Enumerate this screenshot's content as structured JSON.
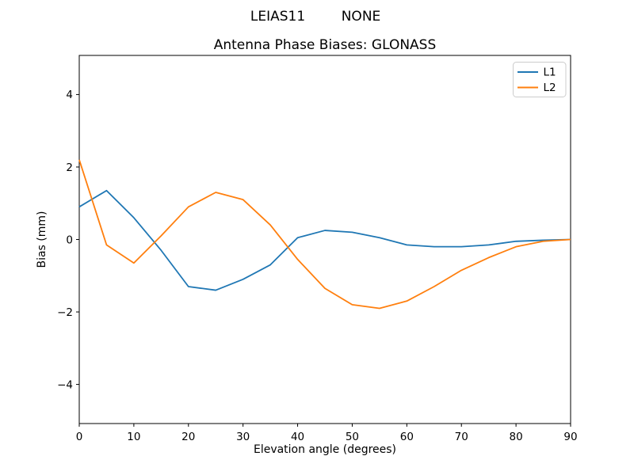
{
  "header": {
    "station": "LEIAS11",
    "radome": "NONE"
  },
  "chart_data": {
    "type": "line",
    "title": "Antenna Phase Biases: GLONASS",
    "xlabel": "Elevation angle (degrees)",
    "ylabel": "Bias (mm)",
    "xlim": [
      0,
      90
    ],
    "ylim": [
      -5.08,
      5.08
    ],
    "grid": false,
    "xticks": [
      0,
      10,
      20,
      30,
      40,
      50,
      60,
      70,
      80,
      90
    ],
    "xtick_labels": [
      "0",
      "10",
      "20",
      "30",
      "40",
      "50",
      "60",
      "70",
      "80",
      "90"
    ],
    "yticks": [
      -4,
      -2,
      0,
      2,
      4
    ],
    "ytick_labels": [
      "−4",
      "−2",
      "0",
      "2",
      "4"
    ],
    "x": [
      0,
      5,
      10,
      15,
      20,
      25,
      30,
      35,
      40,
      45,
      50,
      55,
      60,
      65,
      70,
      75,
      80,
      85,
      90
    ],
    "series": [
      {
        "name": "L1",
        "color": "#1f77b4",
        "values": [
          0.9,
          1.35,
          0.6,
          -0.3,
          -1.3,
          -1.4,
          -1.1,
          -0.7,
          0.05,
          0.25,
          0.2,
          0.05,
          -0.15,
          -0.2,
          -0.2,
          -0.15,
          -0.05,
          -0.02,
          0.0
        ]
      },
      {
        "name": "L2",
        "color": "#ff7f0e",
        "values": [
          2.2,
          -0.15,
          -0.65,
          0.1,
          0.9,
          1.3,
          1.1,
          0.4,
          -0.55,
          -1.35,
          -1.8,
          -1.9,
          -1.7,
          -1.3,
          -0.85,
          -0.5,
          -0.2,
          -0.05,
          0.0
        ]
      }
    ],
    "legend": {
      "position": "upper right",
      "entries": [
        "L1",
        "L2"
      ]
    }
  }
}
